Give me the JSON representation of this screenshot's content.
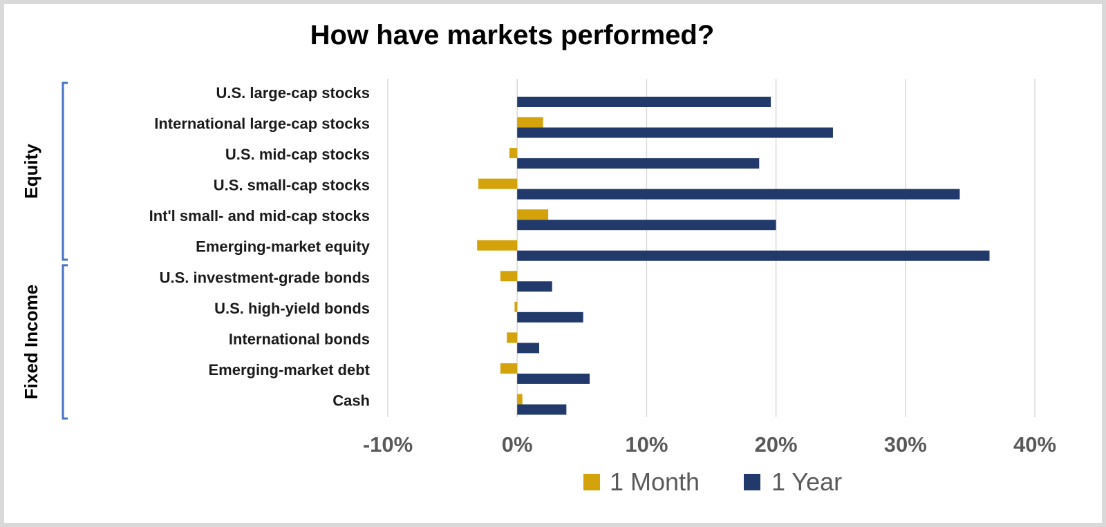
{
  "chart_data": {
    "type": "bar",
    "orientation": "horizontal",
    "title": "How have markets performed?",
    "categories": [
      "U.S. large-cap stocks",
      "International large-cap stocks",
      "U.S. mid-cap stocks",
      "U.S. small-cap stocks",
      "Int'l small- and mid-cap stocks",
      "Emerging-market equity",
      "U.S. investment-grade bonds",
      "U.S. high-yield bonds",
      "International bonds",
      "Emerging-market debt",
      "Cash"
    ],
    "groups": [
      {
        "label": "Equity",
        "categories": [
          0,
          1,
          2,
          3,
          4,
          5
        ]
      },
      {
        "label": "Fixed Income",
        "categories": [
          6,
          7,
          8,
          9,
          10
        ]
      }
    ],
    "series": [
      {
        "name": "1 Month",
        "color": "#d4a20a",
        "values": [
          0.0,
          2.0,
          -0.6,
          -3.0,
          2.4,
          -3.1,
          -1.3,
          -0.2,
          -0.8,
          -1.3,
          0.4
        ]
      },
      {
        "name": "1 Year",
        "color": "#213a6b",
        "values": [
          19.6,
          24.4,
          18.7,
          34.2,
          20.0,
          36.5,
          2.7,
          5.1,
          1.7,
          5.6,
          3.8
        ]
      }
    ],
    "xlim": [
      -10,
      40
    ],
    "x_ticks": [
      -10,
      0,
      10,
      20,
      30,
      40
    ],
    "x_tick_labels": [
      "-10%",
      "0%",
      "10%",
      "20%",
      "30%",
      "40%"
    ],
    "grid": "vertical",
    "legend_position": "bottom"
  }
}
